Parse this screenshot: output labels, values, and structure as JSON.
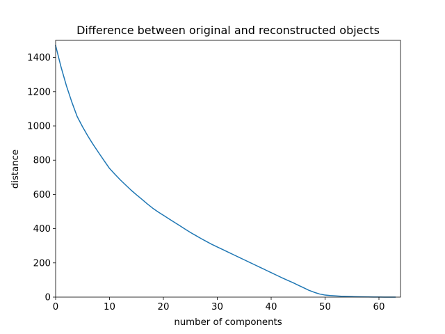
{
  "chart_data": {
    "type": "line",
    "title": "Difference between original and reconstructed objects",
    "xlabel": "number of components",
    "ylabel": "distance",
    "xlim": [
      0,
      64
    ],
    "ylim": [
      0,
      1500
    ],
    "xticks": [
      0,
      10,
      20,
      30,
      40,
      50,
      60
    ],
    "yticks": [
      0,
      200,
      400,
      600,
      800,
      1000,
      1200,
      1400
    ],
    "grid": false,
    "line_color": "#1f77b4",
    "series": [
      {
        "x": [
          0,
          1,
          2,
          3,
          4,
          5,
          6,
          7,
          8,
          9,
          10,
          11,
          12,
          13,
          14,
          15,
          16,
          17,
          18,
          19,
          20,
          21,
          22,
          23,
          24,
          25,
          26,
          27,
          28,
          29,
          30,
          31,
          32,
          33,
          34,
          35,
          36,
          37,
          38,
          39,
          40,
          41,
          42,
          43,
          44,
          45,
          46,
          47,
          48,
          49,
          50,
          51,
          52,
          53,
          54,
          55,
          56,
          57,
          58,
          59,
          60,
          61,
          62,
          63
        ],
        "y": [
          1470,
          1345,
          1235,
          1140,
          1055,
          995,
          940,
          890,
          843,
          797,
          752,
          718,
          685,
          655,
          625,
          598,
          572,
          545,
          520,
          498,
          478,
          458,
          438,
          418,
          398,
          378,
          360,
          342,
          325,
          308,
          293,
          278,
          263,
          248,
          233,
          218,
          203,
          188,
          173,
          158,
          143,
          128,
          113,
          99,
          85,
          70,
          55,
          40,
          28,
          18,
          12,
          9,
          7,
          5,
          4,
          3,
          2,
          1.5,
          1,
          0.5,
          0.3,
          0.2,
          0.1,
          0
        ]
      }
    ]
  }
}
